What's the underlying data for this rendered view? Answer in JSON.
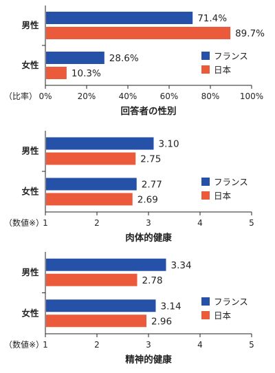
{
  "colors": {
    "france": "#2552a8",
    "japan": "#ec5a3c"
  },
  "legend": {
    "france": "フランス",
    "japan": "日本"
  },
  "chart_data": [
    {
      "type": "bar",
      "orientation": "horizontal",
      "title": "回答者の性別",
      "axis_prefix": "（比率）",
      "xlim": [
        0,
        100
      ],
      "ticks": [
        0,
        20,
        40,
        60,
        80,
        100
      ],
      "tick_labels": [
        "0%",
        "20%",
        "40%",
        "60%",
        "80%",
        "100%"
      ],
      "categories": [
        "男性",
        "女性"
      ],
      "series": [
        {
          "name": "フランス",
          "values": [
            71.4,
            28.6
          ],
          "labels": [
            "71.4%",
            "28.6%"
          ]
        },
        {
          "name": "日本",
          "values": [
            89.7,
            10.3
          ],
          "labels": [
            "89.7%",
            "10.3%"
          ]
        }
      ],
      "legend_position": "right, beside 女性"
    },
    {
      "type": "bar",
      "orientation": "horizontal",
      "title": "肉体的健康",
      "axis_prefix": "（数値※）",
      "xlim": [
        1,
        5
      ],
      "ticks": [
        1,
        2,
        3,
        4,
        5
      ],
      "tick_labels": [
        "1",
        "2",
        "3",
        "4",
        "5"
      ],
      "categories": [
        "男性",
        "女性"
      ],
      "series": [
        {
          "name": "フランス",
          "values": [
            3.1,
            2.77
          ],
          "labels": [
            "3.10",
            "2.77"
          ]
        },
        {
          "name": "日本",
          "values": [
            2.75,
            2.69
          ],
          "labels": [
            "2.75",
            "2.69"
          ]
        }
      ],
      "legend_position": "right, beside 女性"
    },
    {
      "type": "bar",
      "orientation": "horizontal",
      "title": "精神的健康",
      "axis_prefix": "（数値※）",
      "xlim": [
        1,
        5
      ],
      "ticks": [
        1,
        2,
        3,
        4,
        5
      ],
      "tick_labels": [
        "1",
        "2",
        "3",
        "4",
        "5"
      ],
      "categories": [
        "男性",
        "女性"
      ],
      "series": [
        {
          "name": "フランス",
          "values": [
            3.34,
            3.14
          ],
          "labels": [
            "3.34",
            "3.14"
          ]
        },
        {
          "name": "日本",
          "values": [
            2.78,
            2.96
          ],
          "labels": [
            "2.78",
            "2.96"
          ]
        }
      ],
      "legend_position": "right, beside 女性"
    }
  ]
}
